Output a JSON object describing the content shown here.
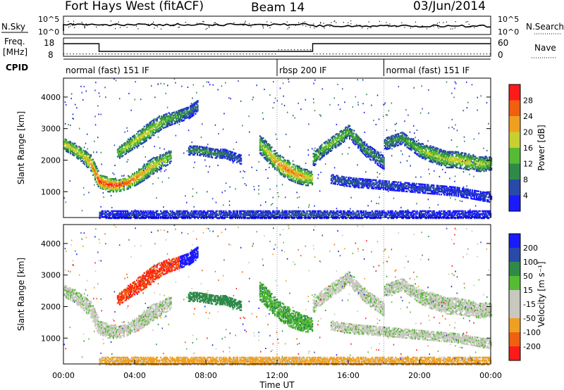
{
  "header": {
    "title": "Fort Hays West (fitACF)",
    "beam": "Beam 14",
    "date": "03/Jun/2014"
  },
  "top_strip": {
    "nsky_label": "N.Sky",
    "nsearch_label": "N.Search",
    "nsky_ticks": [
      "10^5",
      "10^0"
    ],
    "nsearch_ticks": [
      "10^5",
      "10^0"
    ],
    "freq_label_1": "Freq.",
    "freq_label_2": "[MHz]",
    "freq_ticks": [
      "18",
      "8"
    ],
    "nave_label": "Nave",
    "nave_ticks": [
      "60",
      "0"
    ],
    "cpid_label": "CPID",
    "cpid_segments": [
      {
        "label": "normal (fast) 151 IF",
        "start_hour": 0,
        "end_hour": 12
      },
      {
        "label": "rbsp 200 IF",
        "start_hour": 12,
        "end_hour": 18
      },
      {
        "label": "normal (fast) 151 IF",
        "start_hour": 18,
        "end_hour": 24
      }
    ]
  },
  "colors": {
    "power_scale": [
      "#1a1aff",
      "#2a4aa8",
      "#2f8a4a",
      "#55bb33",
      "#c8d030",
      "#f0a020",
      "#f06010",
      "#ff1a1a"
    ],
    "velocity_scale": [
      "#ff1a1a",
      "#f06010",
      "#f0a020",
      "#c8c8c0",
      "#c8c8c0",
      "#55bb33",
      "#2f8a4a",
      "#2a4aa8",
      "#1a1aff"
    ]
  },
  "chart_data": [
    {
      "type": "heatmap",
      "quantity": "power",
      "ylabel": "Slant Range [km]",
      "xlabel": "",
      "ylim": [
        180,
        4600
      ],
      "y_ticks": [
        1000,
        2000,
        3000,
        4000
      ],
      "colorbar_title": "Power [dB]",
      "colorbar_ticks": [
        "4",
        "8",
        "12",
        "16",
        "20",
        "24",
        "28"
      ],
      "colorbar_range": [
        0,
        32
      ],
      "bands": [
        {
          "name": "main",
          "hours": [
            0,
            0.5,
            1,
            1.5,
            2,
            2.5,
            3,
            3.5,
            4,
            4.5,
            5,
            5.5,
            6
          ],
          "ranges_km": [
            2500,
            2350,
            2150,
            1900,
            1300,
            1200,
            1180,
            1250,
            1400,
            1600,
            1800,
            1950,
            2100
          ],
          "widths_km": [
            200,
            200,
            220,
            250,
            250,
            220,
            200,
            200,
            220,
            250,
            250,
            220,
            200
          ],
          "peak_db": [
            22,
            20,
            20,
            24,
            30,
            30,
            30,
            28,
            26,
            22,
            20,
            18,
            16
          ]
        },
        {
          "name": "upper-arc",
          "hours": [
            3,
            3.5,
            4,
            4.5,
            5,
            5.5,
            6,
            6.5,
            7,
            7.5
          ],
          "ranges_km": [
            2200,
            2400,
            2600,
            2800,
            3000,
            3200,
            3300,
            3400,
            3500,
            3700
          ],
          "widths_km": [
            200,
            200,
            220,
            250,
            250,
            220,
            200,
            200,
            200,
            200
          ],
          "peak_db": [
            16,
            18,
            20,
            20,
            18,
            16,
            14,
            12,
            10,
            8
          ]
        },
        {
          "name": "mid-day",
          "hours": [
            7,
            7.5,
            8,
            8.5,
            9,
            9.5,
            10
          ],
          "ranges_km": [
            2300,
            2300,
            2250,
            2200,
            2200,
            2100,
            2000
          ],
          "widths_km": [
            150,
            150,
            150,
            150,
            150,
            150,
            150
          ],
          "peak_db": [
            10,
            12,
            12,
            10,
            9,
            8,
            7
          ]
        },
        {
          "name": "rbsp-arc",
          "hours": [
            11,
            11.5,
            12,
            12.5,
            13,
            13.5,
            14
          ],
          "ranges_km": [
            2500,
            2200,
            1900,
            1700,
            1550,
            1450,
            1400
          ],
          "widths_km": [
            300,
            300,
            300,
            300,
            280,
            260,
            240
          ],
          "peak_db": [
            16,
            20,
            24,
            26,
            24,
            22,
            18
          ]
        },
        {
          "name": "afternoon",
          "hours": [
            14,
            14.5,
            15,
            15.5,
            16,
            16.5,
            17,
            17.5,
            18
          ],
          "ranges_km": [
            2000,
            2300,
            2500,
            2700,
            2900,
            2600,
            2300,
            2100,
            1900
          ],
          "widths_km": [
            220,
            220,
            220,
            220,
            220,
            220,
            220,
            220,
            220
          ],
          "peak_db": [
            14,
            16,
            16,
            16,
            14,
            12,
            12,
            10,
            10
          ]
        },
        {
          "name": "evening",
          "hours": [
            18,
            18.5,
            19,
            19.5,
            20,
            20.5,
            21,
            21.5,
            22,
            22.5,
            23,
            23.5,
            24
          ],
          "ranges_km": [
            2500,
            2600,
            2700,
            2500,
            2300,
            2200,
            2100,
            2000,
            2000,
            1950,
            1900,
            1850,
            1900
          ],
          "widths_km": [
            200,
            200,
            200,
            200,
            220,
            250,
            250,
            250,
            250,
            250,
            250,
            230,
            220
          ],
          "peak_db": [
            10,
            12,
            12,
            14,
            16,
            18,
            18,
            18,
            20,
            20,
            18,
            18,
            16
          ]
        },
        {
          "name": "lower-evening",
          "hours": [
            15,
            16,
            17,
            18,
            19,
            20,
            21,
            22,
            23,
            24
          ],
          "ranges_km": [
            1400,
            1300,
            1250,
            1200,
            1150,
            1100,
            1050,
            1000,
            900,
            800
          ],
          "widths_km": [
            150,
            150,
            150,
            150,
            150,
            150,
            150,
            150,
            150,
            150
          ],
          "peak_db": [
            8,
            8,
            7,
            7,
            6,
            6,
            6,
            5,
            5,
            5
          ]
        },
        {
          "name": "ground",
          "hours": [
            2,
            6,
            10,
            14,
            18,
            22,
            24
          ],
          "ranges_km": [
            260,
            260,
            260,
            260,
            260,
            260,
            260
          ],
          "widths_km": [
            120,
            120,
            120,
            120,
            120,
            120,
            120
          ],
          "peak_db": [
            4,
            6,
            6,
            8,
            6,
            4,
            4
          ]
        }
      ]
    },
    {
      "type": "heatmap",
      "quantity": "velocity",
      "ylabel": "Slant Range [km]",
      "xlabel": "Time UT",
      "ylim": [
        180,
        4600
      ],
      "y_ticks": [
        1000,
        2000,
        3000,
        4000
      ],
      "x_ticks": [
        "00:00",
        "04:00",
        "08:00",
        "12:00",
        "16:00",
        "20:00",
        "00:00"
      ],
      "xlim_hours": [
        0,
        24
      ],
      "colorbar_title": "Velocity [m s⁻¹]",
      "colorbar_ticks": [
        "-200",
        "-100",
        "-50",
        "-15",
        "15",
        "50",
        "100",
        "200"
      ],
      "band_velocity_m_s": {
        "main": 0,
        "upper-arc": -150,
        "mid-day": 60,
        "rbsp-arc": 30,
        "afternoon": 0,
        "evening": 0,
        "lower-evening": 0,
        "ground": -40
      },
      "upper_arc_split_hour": 6.5,
      "upper_arc_after_split_m_s": 200
    }
  ]
}
